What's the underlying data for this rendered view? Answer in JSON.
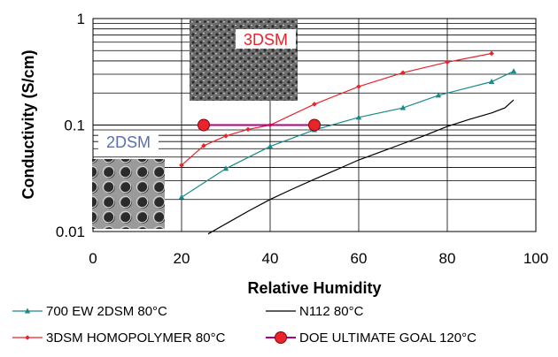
{
  "chart_data": {
    "type": "line",
    "xlabel": "Relative Humidity",
    "ylabel": "Conductivity (S/cm)",
    "xlim": [
      0,
      100
    ],
    "ylim": [
      0.01,
      1
    ],
    "yscale": "log",
    "grid": true,
    "legend_position": "bottom",
    "x_ticks": [
      "0",
      "20",
      "40",
      "60",
      "80",
      "100"
    ],
    "y_ticks": [
      {
        "value": 0.01,
        "label": "0.01"
      },
      {
        "value": 0.1,
        "label": "0.1"
      },
      {
        "value": 1,
        "label": "1"
      }
    ],
    "inset_labels": {
      "top": "3DSM",
      "left": "2DSM"
    },
    "series": [
      {
        "name": "700 EW 2DSM 80°C",
        "color": "#1a8a8a",
        "marker": "triangle",
        "x": [
          20,
          30,
          40,
          50,
          60,
          70,
          78,
          90,
          95
        ],
        "y": [
          0.021,
          0.039,
          0.063,
          0.09,
          0.118,
          0.145,
          0.19,
          0.255,
          0.32
        ]
      },
      {
        "name": "N112 80°C",
        "color": "#000000",
        "marker": "none",
        "x": [
          26,
          30,
          35,
          40,
          45,
          50,
          55,
          60,
          65,
          70,
          75,
          80,
          85,
          90,
          93,
          95
        ],
        "y": [
          0.0095,
          0.0118,
          0.0155,
          0.02,
          0.025,
          0.031,
          0.038,
          0.047,
          0.056,
          0.067,
          0.08,
          0.097,
          0.113,
          0.13,
          0.145,
          0.172
        ]
      },
      {
        "name": "3DSM HOMOPOLYMER 80°C",
        "color": "#e8232a",
        "marker": "diamond",
        "x": [
          20,
          25,
          30,
          35,
          40,
          50,
          60,
          70,
          80,
          90
        ],
        "y": [
          0.042,
          0.064,
          0.079,
          0.091,
          0.1,
          0.157,
          0.23,
          0.31,
          0.39,
          0.47
        ]
      },
      {
        "name": "DOE ULTIMATE GOAL 120°C",
        "color": "#b0008a",
        "marker": "circle",
        "x": [
          25,
          50
        ],
        "y": [
          0.1,
          0.1
        ]
      }
    ]
  }
}
